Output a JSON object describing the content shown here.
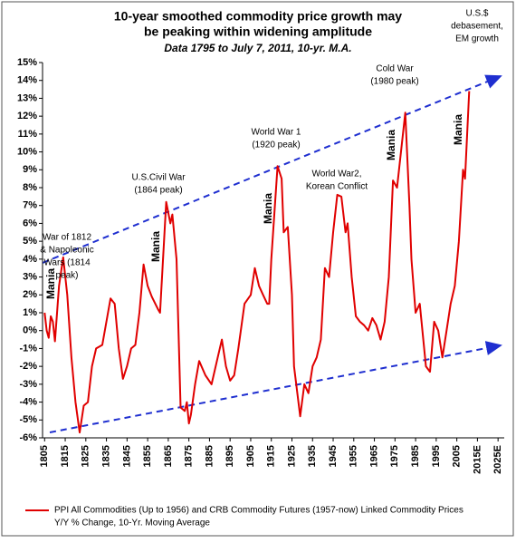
{
  "chart_data": {
    "type": "line",
    "title": [
      "10-year smoothed commodity price growth may",
      "be peaking within widening amplitude"
    ],
    "subtitle": "Data 1795 to July 7, 2011, 10-yr. M.A.",
    "annotations": [
      {
        "lines": [
          "War of 1812",
          "& Napoleonic",
          "Wars (1814",
          "peak)"
        ]
      },
      {
        "lines": [
          "U.S.Civil War",
          "(1864 peak)"
        ]
      },
      {
        "lines": [
          "World War 1",
          "(1920 peak)"
        ]
      },
      {
        "lines": [
          "World War2,",
          "Korean Conflict"
        ]
      },
      {
        "lines": [
          "Cold War",
          "(1980 peak)"
        ]
      },
      {
        "lines": [
          "U.S.$",
          "debasement,",
          "EM growth"
        ]
      }
    ],
    "mania": [
      "Mania",
      "Mania",
      "Mania",
      "Mania",
      "Mania"
    ],
    "y_note": "Y/Y % Change, 10-Yr. Moving Average",
    "xlim": [
      1804,
      2028
    ],
    "xticks": [
      1805,
      1815,
      1825,
      1835,
      1845,
      1855,
      1865,
      1875,
      1885,
      1895,
      1905,
      1915,
      1925,
      1935,
      1945,
      1955,
      1965,
      1975,
      1985,
      1995,
      2005,
      {
        "value": 2015,
        "label": "2015E"
      },
      {
        "value": 2025,
        "label": "2025E"
      }
    ],
    "ylim": [
      -6,
      15
    ],
    "yticks": [
      {
        "value": -6,
        "label": "-6%"
      },
      {
        "value": -5,
        "label": "-5%"
      },
      {
        "value": -4,
        "label": "-4%"
      },
      {
        "value": -3,
        "label": "-3%"
      },
      {
        "value": -2,
        "label": "-2%"
      },
      {
        "value": -1,
        "label": "-1%"
      },
      {
        "value": 0,
        "label": "0%"
      },
      {
        "value": 1,
        "label": "1%"
      },
      {
        "value": 2,
        "label": "2%"
      },
      {
        "value": 3,
        "label": "3%"
      },
      {
        "value": 4,
        "label": "4%"
      },
      {
        "value": 5,
        "label": "5%"
      },
      {
        "value": 6,
        "label": "6%"
      },
      {
        "value": 7,
        "label": "7%"
      },
      {
        "value": 8,
        "label": "8%"
      },
      {
        "value": 9,
        "label": "9%"
      },
      {
        "value": 10,
        "label": "10%"
      },
      {
        "value": 11,
        "label": "11%"
      },
      {
        "value": 12,
        "label": "12%"
      },
      {
        "value": 13,
        "label": "13%"
      },
      {
        "value": 14,
        "label": "14%"
      },
      {
        "value": 15,
        "label": "15%"
      }
    ],
    "x": [
      1805,
      1806,
      1807,
      1808,
      1809,
      1810,
      1812,
      1814,
      1816,
      1818,
      1820,
      1822,
      1824,
      1826,
      1828,
      1830,
      1833,
      1837,
      1839,
      1841,
      1843,
      1845,
      1847,
      1849,
      1851,
      1853,
      1855,
      1857,
      1860,
      1861,
      1864,
      1866,
      1867,
      1869,
      1871,
      1873,
      1874,
      1875,
      1876,
      1878,
      1880,
      1883,
      1886,
      1889,
      1891,
      1893,
      1895,
      1897,
      1899,
      1902,
      1905,
      1907,
      1909,
      1911,
      1913,
      1914,
      1915,
      1918,
      1920,
      1921,
      1923,
      1925,
      1926,
      1929,
      1931,
      1933,
      1935,
      1937,
      1939,
      1941,
      1943,
      1945,
      1947,
      1949,
      1951,
      1952,
      1954,
      1956,
      1958,
      1960,
      1962,
      1964,
      1966,
      1968,
      1970,
      1972,
      1974,
      1976,
      1980,
      1982,
      1983,
      1985,
      1987,
      1990,
      1992,
      1994,
      1996,
      1998,
      2000,
      2002,
      2004,
      2006,
      2008,
      2009,
      2011
    ],
    "series": [
      {
        "name": "PPI All Commodities (Up to 1956) and CRB Commodity Futures (1957-now) Linked Commodity Prices",
        "color": "#e00000",
        "values": [
          1,
          0,
          -0.4,
          0.8,
          0.5,
          -0.6,
          2.5,
          4.1,
          2,
          -1.5,
          -4,
          -5.7,
          -4.2,
          -4,
          -2,
          -1,
          -0.8,
          1.8,
          1.5,
          -1,
          -2.7,
          -2,
          -1,
          -0.8,
          1,
          3.7,
          2.5,
          1.9,
          1.2,
          1,
          7.2,
          6,
          6.5,
          4,
          -4.3,
          -4.5,
          -4,
          -5.2,
          -4.7,
          -3,
          -1.7,
          -2.5,
          -3,
          -1.5,
          -0.5,
          -2,
          -2.8,
          -2.5,
          -1,
          1.5,
          2,
          3.5,
          2.5,
          2,
          1.5,
          1.5,
          4,
          9.2,
          8.5,
          5.5,
          5.8,
          2,
          -2,
          -4.8,
          -3,
          -3.5,
          -2,
          -1.5,
          -0.5,
          3.5,
          3,
          5.5,
          7.6,
          7.5,
          5.5,
          6,
          3,
          0.8,
          0.5,
          0.3,
          0,
          0.7,
          0.3,
          -0.5,
          0.5,
          3,
          8.4,
          8,
          12.2,
          7,
          4,
          1,
          1.5,
          -2,
          -2.3,
          0.5,
          0,
          -1.5,
          0,
          1.5,
          2.5,
          5,
          9,
          8.5,
          13.4
        ]
      }
    ]
  }
}
